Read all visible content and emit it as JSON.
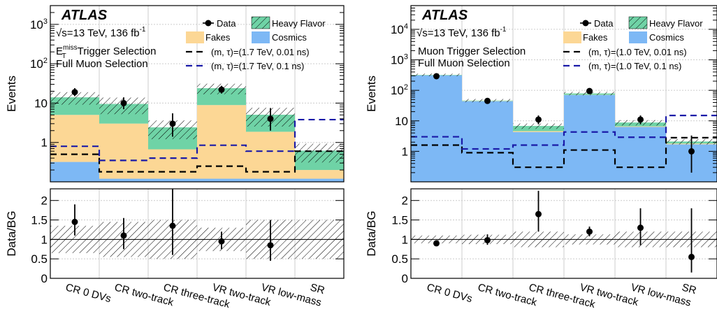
{
  "chart_data": [
    {
      "type": "bar",
      "subtype": "stacked-histogram-with-ratio",
      "panel": "left",
      "experiment": "ATLAS",
      "energy_label": "√s=13 TeV, 136 fb",
      "lumi_sup": "-1",
      "selection_lines": [
        "E",
        "miss",
        "T",
        " Trigger Selection",
        "Full Muon Selection"
      ],
      "ylabel": "Events",
      "ratio_ylabel": "Data/BG",
      "yscale": "log",
      "ylim": [
        0.1,
        3000
      ],
      "yticks": [
        {
          "value": 1,
          "base": "1",
          "sup": ""
        },
        {
          "value": 10,
          "base": "10",
          "sup": ""
        },
        {
          "value": 100,
          "base": "10",
          "sup": "2"
        },
        {
          "value": 1000,
          "base": "10",
          "sup": "3"
        }
      ],
      "ratio_ylim": [
        0,
        2.3
      ],
      "ratio_yticks": [
        "0",
        "0.5",
        "1",
        "1.5",
        "2"
      ],
      "categories": [
        "CR 0 DVs",
        "CR two-track",
        "CR three-track",
        "VR two-track",
        "VR low-mass",
        "SR"
      ],
      "stack": [
        {
          "name": "Cosmics",
          "color": "#7db8f5",
          "values": [
            0.32,
            0.12,
            0.12,
            0.12,
            0.12,
            0.12
          ]
        },
        {
          "name": "Fakes",
          "color": "#fcd795",
          "values": [
            4.7,
            2.9,
            0.55,
            8.8,
            1.75,
            0.08
          ]
        },
        {
          "name": "Heavy Flavor",
          "color": "#6fd3a6",
          "values": [
            9.0,
            6.5,
            1.75,
            15.0,
            3.2,
            0.42
          ]
        }
      ],
      "bg_uncertainty_fraction": [
        0.35,
        0.45,
        0.5,
        0.3,
        0.5,
        0.5
      ],
      "data": [
        19,
        10,
        3,
        22,
        4,
        null
      ],
      "data_err_low": [
        4,
        3,
        1.6,
        4.5,
        2
      ],
      "data_err_high": [
        5,
        4,
        2.5,
        5.5,
        3.5
      ],
      "signals": [
        {
          "name": "(m, τ)=(1.7 TeV, 0.01 ns)",
          "color": "#000000",
          "values": [
            0.5,
            0.18,
            0.18,
            0.25,
            0.18,
            0.6
          ]
        },
        {
          "name": "(m, τ)=(1.7 TeV, 0.1 ns)",
          "color": "#1a1aa8",
          "values": [
            0.8,
            0.35,
            0.4,
            0.85,
            0.6,
            3.8
          ]
        }
      ],
      "ratio": [
        1.45,
        1.1,
        1.35,
        0.95,
        0.85,
        null
      ],
      "ratio_err_low": [
        0.35,
        0.35,
        0.75,
        0.2,
        0.4
      ],
      "ratio_err_high": [
        0.45,
        0.45,
        0.95,
        0.25,
        0.65
      ],
      "ratio_band": [
        0.35,
        0.45,
        0.5,
        0.3,
        0.5,
        0.5
      ]
    },
    {
      "type": "bar",
      "subtype": "stacked-histogram-with-ratio",
      "panel": "right",
      "experiment": "ATLAS",
      "energy_label": "√s=13 TeV, 136 fb",
      "lumi_sup": "-1",
      "selection_lines": [
        "Muon Trigger Selection",
        "Full Muon Selection"
      ],
      "ylabel": "Events",
      "ratio_ylabel": "Data/BG",
      "yscale": "log",
      "ylim": [
        0.1,
        60000
      ],
      "yticks": [
        {
          "value": 1,
          "base": "1",
          "sup": ""
        },
        {
          "value": 10,
          "base": "10",
          "sup": ""
        },
        {
          "value": 100,
          "base": "10",
          "sup": "2"
        },
        {
          "value": 1000,
          "base": "10",
          "sup": "3"
        },
        {
          "value": 10000,
          "base": "10",
          "sup": "4"
        }
      ],
      "ratio_ylim": [
        0,
        2.3
      ],
      "ratio_yticks": [
        "0",
        "0.5",
        "1",
        "1.5",
        "2"
      ],
      "categories": [
        "CR 0 DVs",
        "CR two-track",
        "CR three-track",
        "VR two-track",
        "VR low-mass",
        "SR"
      ],
      "stack": [
        {
          "name": "Cosmics",
          "color": "#7db8f5",
          "values": [
            310,
            44,
            4.3,
            70,
            6.3,
            1.7
          ]
        },
        {
          "name": "Fakes",
          "color": "#fcd795",
          "values": [
            1.5,
            0.8,
            0.3,
            1.0,
            0.3,
            0.1
          ]
        },
        {
          "name": "Heavy Flavor",
          "color": "#6fd3a6",
          "values": [
            10,
            1.5,
            2.2,
            8,
            2.2,
            0.3
          ]
        }
      ],
      "bg_uncertainty_fraction": [
        0.1,
        0.12,
        0.2,
        0.13,
        0.2,
        0.2
      ],
      "data": [
        290,
        45,
        11,
        95,
        11,
        1
      ],
      "data_err_low": [
        17,
        7,
        3.3,
        10,
        3.3,
        0.8
      ],
      "data_err_high": [
        18,
        7.5,
        4,
        10.5,
        4,
        2.3
      ],
      "signals": [
        {
          "name": "(m, τ)=(1.0 TeV, 0.01 ns)",
          "color": "#000000",
          "values": [
            1.6,
            0.9,
            0.3,
            1.1,
            0.3,
            2.8
          ]
        },
        {
          "name": "(m, τ)=(1.0 TeV, 0.1 ns)",
          "color": "#1a1aa8",
          "values": [
            3.0,
            1.2,
            1.6,
            4.3,
            2.9,
            15
          ]
        }
      ],
      "ratio": [
        0.9,
        0.98,
        1.65,
        1.2,
        1.3,
        0.55
      ],
      "ratio_err_low": [
        0.05,
        0.12,
        0.45,
        0.12,
        0.45,
        0.4
      ],
      "ratio_err_high": [
        0.05,
        0.15,
        0.6,
        0.13,
        0.5,
        1.25
      ],
      "ratio_band": [
        0.1,
        0.12,
        0.2,
        0.13,
        0.2,
        0.2
      ]
    }
  ],
  "legend": {
    "data": "Data",
    "heavy_flavor": "Heavy Flavor",
    "fakes": "Fakes",
    "cosmics": "Cosmics"
  }
}
